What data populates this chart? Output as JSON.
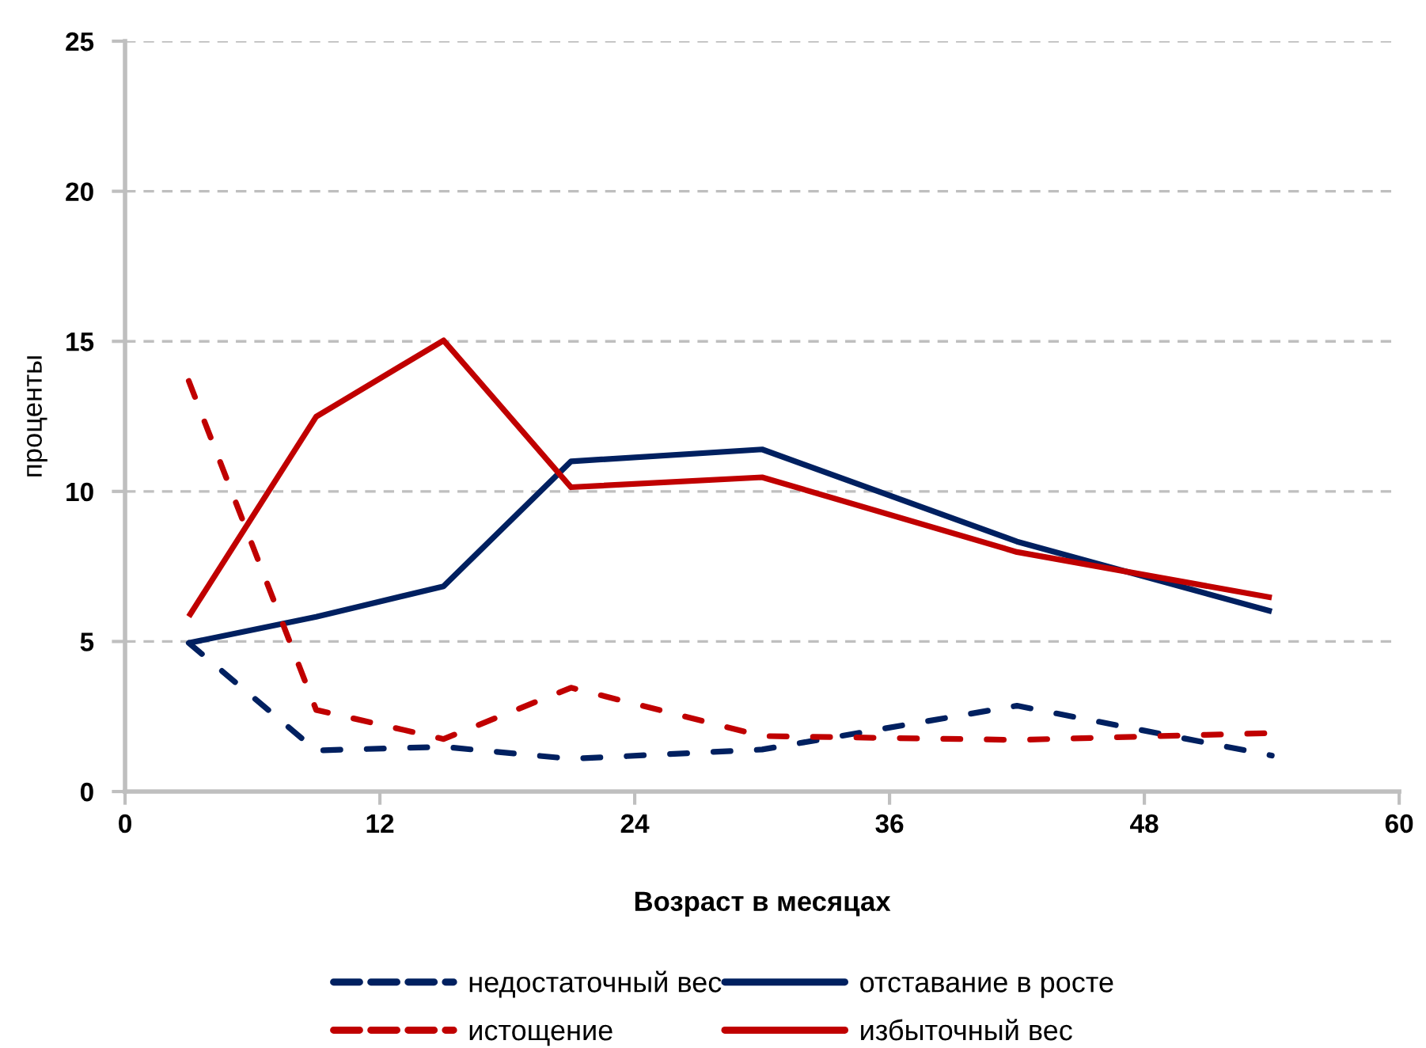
{
  "chart_data": {
    "type": "line",
    "xlabel": "Возраст в месяцах",
    "ylabel": "проценты",
    "x": [
      3,
      9,
      15,
      21,
      30,
      42,
      54
    ],
    "xlim": [
      0,
      60
    ],
    "xticks": [
      0,
      12,
      24,
      36,
      48,
      60
    ],
    "ylim": [
      0,
      25
    ],
    "yticks": [
      0,
      5,
      10,
      15,
      20,
      25
    ],
    "grid": "y",
    "legend": "bottom",
    "marker": "none",
    "series": [
      {
        "name": "недостаточный вес",
        "color": "#002060",
        "line_style": "dashed",
        "values": [
          4.95,
          1.37,
          1.49,
          1.09,
          1.4,
          2.86,
          1.2
        ]
      },
      {
        "name": "отставание в росте",
        "color": "#002060",
        "line_style": "solid",
        "values": [
          4.95,
          5.82,
          6.84,
          11.0,
          11.4,
          8.33,
          6.0
        ]
      },
      {
        "name": "истощение",
        "color": "#c00000",
        "line_style": "dashed",
        "values": [
          13.68,
          2.72,
          1.75,
          3.46,
          1.85,
          1.72,
          1.95
        ]
      },
      {
        "name": "избыточный вес",
        "color": "#c00000",
        "line_style": "solid",
        "values": [
          5.83,
          12.49,
          15.03,
          10.14,
          10.47,
          7.98,
          6.46
        ]
      }
    ]
  }
}
